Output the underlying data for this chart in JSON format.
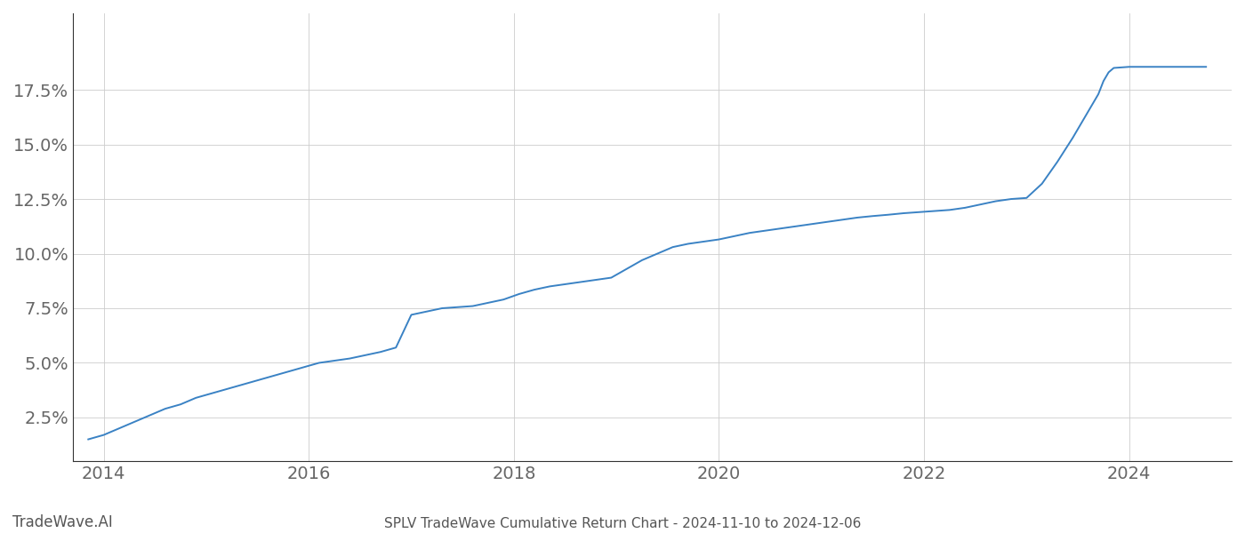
{
  "title": "SPLV TradeWave Cumulative Return Chart - 2024-11-10 to 2024-12-06",
  "watermark": "TradeWave.AI",
  "line_color": "#3a82c4",
  "background_color": "#ffffff",
  "grid_color": "#cccccc",
  "x_values": [
    2013.85,
    2014.0,
    2014.15,
    2014.3,
    2014.45,
    2014.6,
    2014.75,
    2014.9,
    2015.05,
    2015.2,
    2015.35,
    2015.5,
    2015.65,
    2015.8,
    2015.95,
    2016.1,
    2016.25,
    2016.4,
    2016.55,
    2016.7,
    2016.85,
    2017.0,
    2017.15,
    2017.3,
    2017.45,
    2017.6,
    2017.75,
    2017.9,
    2018.05,
    2018.2,
    2018.35,
    2018.5,
    2018.65,
    2018.8,
    2018.95,
    2019.1,
    2019.25,
    2019.4,
    2019.55,
    2019.7,
    2019.85,
    2020.0,
    2020.15,
    2020.3,
    2020.45,
    2020.6,
    2020.75,
    2020.9,
    2021.05,
    2021.2,
    2021.35,
    2021.5,
    2021.65,
    2021.8,
    2021.95,
    2022.1,
    2022.25,
    2022.4,
    2022.55,
    2022.7,
    2022.85,
    2023.0,
    2023.15,
    2023.3,
    2023.45,
    2023.6,
    2023.7,
    2023.75,
    2023.8,
    2023.85,
    2024.0,
    2024.2,
    2024.4,
    2024.6,
    2024.75
  ],
  "y_values": [
    1.5,
    1.7,
    2.0,
    2.3,
    2.6,
    2.9,
    3.1,
    3.4,
    3.6,
    3.8,
    4.0,
    4.2,
    4.4,
    4.6,
    4.8,
    5.0,
    5.1,
    5.2,
    5.35,
    5.5,
    5.7,
    7.2,
    7.35,
    7.5,
    7.55,
    7.6,
    7.75,
    7.9,
    8.15,
    8.35,
    8.5,
    8.6,
    8.7,
    8.8,
    8.9,
    9.3,
    9.7,
    10.0,
    10.3,
    10.45,
    10.55,
    10.65,
    10.8,
    10.95,
    11.05,
    11.15,
    11.25,
    11.35,
    11.45,
    11.55,
    11.65,
    11.72,
    11.78,
    11.85,
    11.9,
    11.95,
    12.0,
    12.1,
    12.25,
    12.4,
    12.5,
    12.55,
    13.2,
    14.2,
    15.3,
    16.5,
    17.3,
    17.9,
    18.3,
    18.5,
    18.55,
    18.55,
    18.55,
    18.55,
    18.55
  ],
  "xlim": [
    2013.7,
    2025.0
  ],
  "ylim": [
    0.5,
    21.0
  ],
  "xticks": [
    2014,
    2016,
    2018,
    2020,
    2022,
    2024
  ],
  "yticks": [
    2.5,
    5.0,
    7.5,
    10.0,
    12.5,
    15.0,
    17.5
  ],
  "line_width": 1.4,
  "tick_fontsize": 14,
  "footer_fontsize": 11,
  "watermark_fontsize": 12
}
